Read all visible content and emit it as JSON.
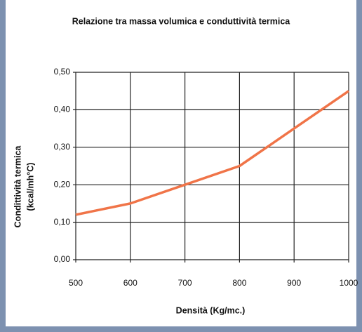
{
  "chart_data": {
    "type": "line",
    "title": "Relazione tra massa volumica e conduttività termica",
    "xlabel": "Densità (Kg/mc.)",
    "ylabel": [
      "Condittività termica",
      "(kcal/mh°C)"
    ],
    "x": [
      500,
      600,
      700,
      800,
      900,
      1000
    ],
    "values": [
      0.12,
      0.15,
      0.2,
      0.25,
      0.35,
      0.45
    ],
    "color": "#f07448",
    "xlim": [
      500,
      1000
    ],
    "xticks": [
      500,
      600,
      700,
      800,
      900,
      1000
    ],
    "ylim": [
      0,
      0.5
    ],
    "yticks": [
      {
        "value": 0,
        "label": "0,00"
      },
      {
        "value": 0.1,
        "label": "0,10"
      },
      {
        "value": 0.2,
        "label": "0,20"
      },
      {
        "value": 0.3,
        "label": "0,30"
      },
      {
        "value": 0.4,
        "label": "0,40"
      },
      {
        "value": 0.5,
        "label": "0,50"
      }
    ],
    "grid": true
  }
}
